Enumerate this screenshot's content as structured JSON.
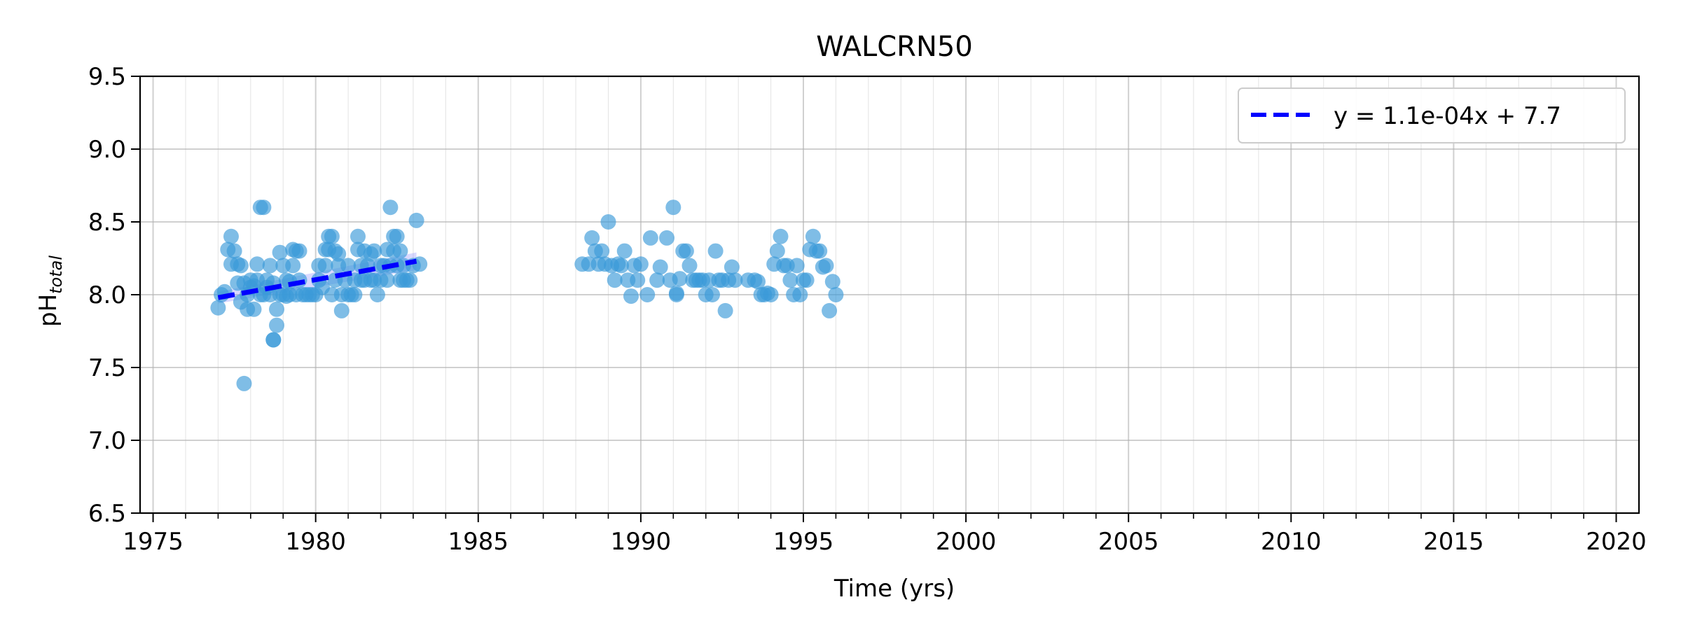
{
  "chart_data": {
    "type": "scatter",
    "title": "WALCRN50",
    "xlabel": "Time (yrs)",
    "ylabel": "pH",
    "ylabel_subscript": "total",
    "xlim": [
      1974.6,
      2020.7
    ],
    "ylim": [
      6.5,
      9.5
    ],
    "xticks": [
      1975,
      1980,
      1985,
      1990,
      1995,
      2000,
      2005,
      2010,
      2015,
      2020
    ],
    "yticks": [
      6.5,
      7.0,
      7.5,
      8.0,
      8.5,
      9.0,
      9.5
    ],
    "x_minor_step": 1,
    "y_minor_step": 0.5,
    "grid": true,
    "legend_position": "top-right",
    "colors": {
      "points": "#3a9ad9",
      "trend": "#0000ff",
      "band": "#8080ff",
      "grid": "#b0b0b0"
    },
    "series": [
      {
        "type": "scatter",
        "points": [
          [
            1977.0,
            7.91
          ],
          [
            1977.1,
            8.0
          ],
          [
            1977.2,
            8.02
          ],
          [
            1977.3,
            8.31
          ],
          [
            1977.4,
            8.21
          ],
          [
            1977.4,
            8.4
          ],
          [
            1977.5,
            8.3
          ],
          [
            1977.6,
            8.21
          ],
          [
            1977.6,
            8.08
          ],
          [
            1977.7,
            8.2
          ],
          [
            1977.7,
            7.95
          ],
          [
            1977.8,
            7.39
          ],
          [
            1977.8,
            8.08
          ],
          [
            1977.9,
            8.0
          ],
          [
            1977.9,
            7.9
          ],
          [
            1978.0,
            8.1
          ],
          [
            1978.0,
            8.05
          ],
          [
            1978.1,
            7.9
          ],
          [
            1978.1,
            8.06
          ],
          [
            1978.2,
            8.21
          ],
          [
            1978.2,
            8.1
          ],
          [
            1978.3,
            8.0
          ],
          [
            1978.3,
            8.6
          ],
          [
            1978.4,
            8.6
          ],
          [
            1978.4,
            8.0
          ],
          [
            1978.5,
            8.1
          ],
          [
            1978.5,
            8.05
          ],
          [
            1978.6,
            8.2
          ],
          [
            1978.6,
            8.0
          ],
          [
            1978.7,
            7.69
          ],
          [
            1978.7,
            7.69
          ],
          [
            1978.7,
            8.08
          ],
          [
            1978.8,
            7.9
          ],
          [
            1978.8,
            7.79
          ],
          [
            1978.9,
            8.29
          ],
          [
            1978.9,
            8.0
          ],
          [
            1979.0,
            8.2
          ],
          [
            1979.0,
            8.0
          ],
          [
            1979.1,
            8.1
          ],
          [
            1979.1,
            7.99
          ],
          [
            1979.2,
            8.09
          ],
          [
            1979.2,
            8.0
          ],
          [
            1979.3,
            8.2
          ],
          [
            1979.3,
            8.31
          ],
          [
            1979.4,
            8.3
          ],
          [
            1979.4,
            8.0
          ],
          [
            1979.5,
            8.3
          ],
          [
            1979.5,
            8.1
          ],
          [
            1979.6,
            8.0
          ],
          [
            1979.7,
            8.0
          ],
          [
            1979.8,
            8.0
          ],
          [
            1979.9,
            8.0
          ],
          [
            1980.0,
            8.0
          ],
          [
            1980.1,
            8.1
          ],
          [
            1980.1,
            8.2
          ],
          [
            1980.2,
            8.05
          ],
          [
            1980.3,
            8.2
          ],
          [
            1980.3,
            8.31
          ],
          [
            1980.4,
            8.4
          ],
          [
            1980.4,
            8.31
          ],
          [
            1980.5,
            8.4
          ],
          [
            1980.5,
            8.0
          ],
          [
            1980.6,
            8.3
          ],
          [
            1980.6,
            8.1
          ],
          [
            1980.7,
            8.2
          ],
          [
            1980.7,
            8.28
          ],
          [
            1980.8,
            7.89
          ],
          [
            1980.8,
            8.0
          ],
          [
            1980.9,
            8.1
          ],
          [
            1981.0,
            8.0
          ],
          [
            1981.0,
            8.2
          ],
          [
            1981.1,
            8.0
          ],
          [
            1981.2,
            8.0
          ],
          [
            1981.2,
            8.1
          ],
          [
            1981.3,
            8.4
          ],
          [
            1981.3,
            8.31
          ],
          [
            1981.4,
            8.1
          ],
          [
            1981.4,
            8.2
          ],
          [
            1981.5,
            8.3
          ],
          [
            1981.5,
            8.1
          ],
          [
            1981.6,
            8.2
          ],
          [
            1981.7,
            8.28
          ],
          [
            1981.7,
            8.1
          ],
          [
            1981.8,
            8.3
          ],
          [
            1981.8,
            8.1
          ],
          [
            1981.9,
            8.0
          ],
          [
            1982.0,
            8.2
          ],
          [
            1982.0,
            8.1
          ],
          [
            1982.1,
            8.2
          ],
          [
            1982.2,
            8.31
          ],
          [
            1982.2,
            8.1
          ],
          [
            1982.3,
            8.2
          ],
          [
            1982.3,
            8.6
          ],
          [
            1982.4,
            8.4
          ],
          [
            1982.4,
            8.3
          ],
          [
            1982.5,
            8.2
          ],
          [
            1982.5,
            8.4
          ],
          [
            1982.6,
            8.1
          ],
          [
            1982.6,
            8.3
          ],
          [
            1982.7,
            8.2
          ],
          [
            1982.7,
            8.1
          ],
          [
            1982.8,
            8.1
          ],
          [
            1982.9,
            8.1
          ],
          [
            1983.0,
            8.2
          ],
          [
            1983.1,
            8.51
          ],
          [
            1983.2,
            8.21
          ],
          [
            1988.2,
            8.21
          ],
          [
            1988.4,
            8.21
          ],
          [
            1988.5,
            8.39
          ],
          [
            1988.6,
            8.3
          ],
          [
            1988.7,
            8.21
          ],
          [
            1988.8,
            8.3
          ],
          [
            1988.9,
            8.21
          ],
          [
            1989.0,
            8.5
          ],
          [
            1989.1,
            8.2
          ],
          [
            1989.2,
            8.1
          ],
          [
            1989.3,
            8.21
          ],
          [
            1989.4,
            8.2
          ],
          [
            1989.5,
            8.3
          ],
          [
            1989.6,
            8.1
          ],
          [
            1989.7,
            7.99
          ],
          [
            1989.8,
            8.2
          ],
          [
            1989.9,
            8.1
          ],
          [
            1990.0,
            8.21
          ],
          [
            1990.2,
            8.0
          ],
          [
            1990.3,
            8.39
          ],
          [
            1990.5,
            8.1
          ],
          [
            1990.6,
            8.19
          ],
          [
            1990.8,
            8.39
          ],
          [
            1990.9,
            8.1
          ],
          [
            1991.0,
            8.6
          ],
          [
            1991.1,
            8.0
          ],
          [
            1991.1,
            8.01
          ],
          [
            1991.2,
            8.11
          ],
          [
            1991.3,
            8.3
          ],
          [
            1991.4,
            8.3
          ],
          [
            1991.5,
            8.2
          ],
          [
            1991.6,
            8.1
          ],
          [
            1991.7,
            8.1
          ],
          [
            1991.8,
            8.1
          ],
          [
            1991.9,
            8.1
          ],
          [
            1992.0,
            8.0
          ],
          [
            1992.1,
            8.1
          ],
          [
            1992.2,
            8.0
          ],
          [
            1992.3,
            8.3
          ],
          [
            1992.4,
            8.1
          ],
          [
            1992.5,
            8.1
          ],
          [
            1992.6,
            7.89
          ],
          [
            1992.7,
            8.1
          ],
          [
            1992.8,
            8.19
          ],
          [
            1992.9,
            8.1
          ],
          [
            1993.3,
            8.1
          ],
          [
            1993.5,
            8.1
          ],
          [
            1993.6,
            8.09
          ],
          [
            1993.7,
            8.0
          ],
          [
            1993.8,
            8.0
          ],
          [
            1993.9,
            8.01
          ],
          [
            1994.0,
            8.0
          ],
          [
            1994.1,
            8.21
          ],
          [
            1994.2,
            8.3
          ],
          [
            1994.3,
            8.4
          ],
          [
            1994.4,
            8.2
          ],
          [
            1994.5,
            8.2
          ],
          [
            1994.6,
            8.1
          ],
          [
            1994.7,
            8.0
          ],
          [
            1994.8,
            8.2
          ],
          [
            1994.9,
            8.0
          ],
          [
            1995.0,
            8.1
          ],
          [
            1995.1,
            8.1
          ],
          [
            1995.2,
            8.31
          ],
          [
            1995.3,
            8.4
          ],
          [
            1995.4,
            8.3
          ],
          [
            1995.5,
            8.3
          ],
          [
            1995.6,
            8.19
          ],
          [
            1995.7,
            8.2
          ],
          [
            1995.8,
            7.89
          ],
          [
            1995.9,
            8.09
          ],
          [
            1996.0,
            8.0
          ]
        ]
      }
    ],
    "trend": {
      "label": "y = 1.1e-04x + 7.7",
      "x_start": 1977.0,
      "x_end": 1983.1,
      "y_start": 7.98,
      "y_end": 8.23,
      "band_halfwidth_start": 0.04,
      "band_halfwidth_end": 0.06
    }
  }
}
